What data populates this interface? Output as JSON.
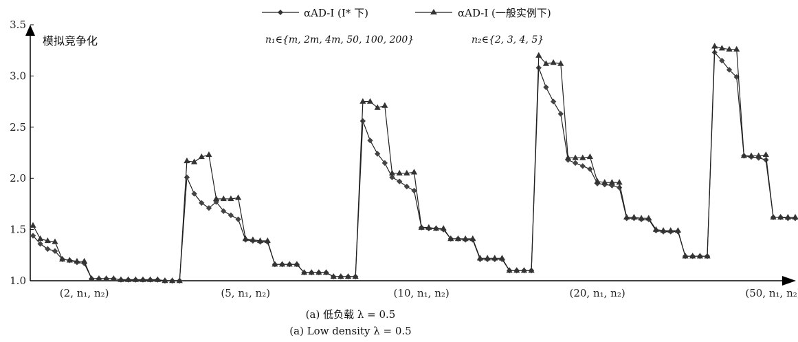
{
  "chart_data": {
    "type": "line",
    "ylabel": "模拟竞争化",
    "ylim": [
      1.0,
      3.5
    ],
    "yticks": [
      "1.0",
      "1.5",
      "2.0",
      "2.5",
      "3.0",
      "3.5"
    ],
    "group_labels": [
      "(2, n₁, n₂)",
      "(5, n₁, n₂)",
      "(10, n₁, n₂)",
      "(20, n₁, n₂)",
      "(50, n₁, n₂)"
    ],
    "legend_note_n1": "n₁∈{m, 2m, 4m, 50, 100, 200}",
    "legend_note_n2": "n₂∈{2, 3, 4, 5}",
    "captions": [
      "(a) 低负载 λ = 0.5",
      "(a) Low density λ = 0.5"
    ],
    "series": [
      {
        "name": "αAD-I (I* 下)",
        "marker": "diamond",
        "color": "#444444",
        "values": [
          1.44,
          1.36,
          1.31,
          1.29,
          1.21,
          1.2,
          1.18,
          1.17,
          1.02,
          1.02,
          1.02,
          1.02,
          1.01,
          1.01,
          1.01,
          1.01,
          1.01,
          1.01,
          1.0,
          1.0,
          1.0,
          2.01,
          1.85,
          1.76,
          1.71,
          1.77,
          1.68,
          1.64,
          1.6,
          1.4,
          1.39,
          1.38,
          1.38,
          1.16,
          1.16,
          1.16,
          1.16,
          1.08,
          1.08,
          1.08,
          1.08,
          1.04,
          1.04,
          1.04,
          1.04,
          2.56,
          2.37,
          2.24,
          2.15,
          2.01,
          1.97,
          1.92,
          1.88,
          1.52,
          1.51,
          1.51,
          1.5,
          1.41,
          1.41,
          1.4,
          1.4,
          1.21,
          1.21,
          1.21,
          1.21,
          1.1,
          1.1,
          1.1,
          1.1,
          3.08,
          2.89,
          2.75,
          2.63,
          2.18,
          2.15,
          2.12,
          2.09,
          1.95,
          1.94,
          1.93,
          1.91,
          1.61,
          1.61,
          1.6,
          1.6,
          1.49,
          1.48,
          1.48,
          1.48,
          1.24,
          1.24,
          1.24,
          1.24,
          3.23,
          3.15,
          3.06,
          2.99,
          2.22,
          2.21,
          2.2,
          2.18,
          1.62,
          1.62,
          1.61,
          1.61
        ]
      },
      {
        "name": "αAD-I (一般实例下)",
        "marker": "triangle",
        "color": "#333333",
        "values": [
          1.54,
          1.41,
          1.39,
          1.38,
          1.21,
          1.2,
          1.19,
          1.19,
          1.02,
          1.02,
          1.02,
          1.02,
          1.01,
          1.01,
          1.01,
          1.01,
          1.01,
          1.01,
          1.0,
          1.0,
          1.0,
          2.17,
          2.16,
          2.21,
          2.23,
          1.8,
          1.8,
          1.8,
          1.81,
          1.41,
          1.4,
          1.39,
          1.39,
          1.16,
          1.16,
          1.16,
          1.16,
          1.08,
          1.08,
          1.08,
          1.08,
          1.04,
          1.04,
          1.04,
          1.04,
          2.75,
          2.75,
          2.69,
          2.71,
          2.05,
          2.05,
          2.05,
          2.06,
          1.52,
          1.52,
          1.51,
          1.51,
          1.41,
          1.41,
          1.41,
          1.41,
          1.22,
          1.22,
          1.22,
          1.22,
          1.1,
          1.1,
          1.1,
          1.1,
          3.2,
          3.12,
          3.13,
          3.12,
          2.2,
          2.2,
          2.2,
          2.21,
          1.97,
          1.96,
          1.96,
          1.96,
          1.62,
          1.62,
          1.61,
          1.61,
          1.5,
          1.49,
          1.49,
          1.49,
          1.24,
          1.24,
          1.24,
          1.24,
          3.29,
          3.27,
          3.26,
          3.26,
          2.22,
          2.22,
          2.22,
          2.23,
          1.62,
          1.62,
          1.62,
          1.62
        ]
      }
    ]
  }
}
